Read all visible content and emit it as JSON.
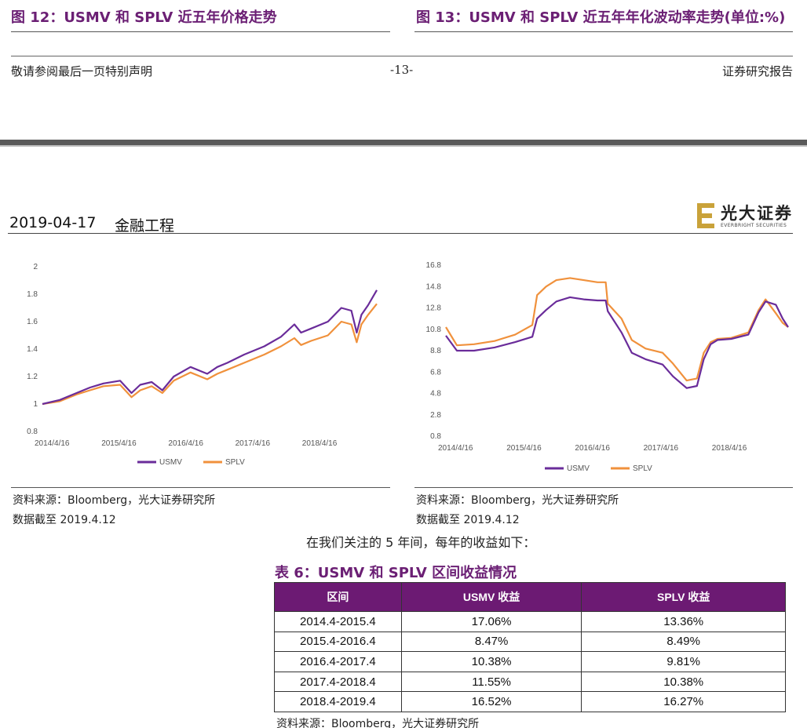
{
  "figures": {
    "fig12_title": "图 12：USMV 和 SPLV 近五年价格走势",
    "fig13_title": "图 13：USMV 和 SPLV 近五年年化波动率走势(单位:%)"
  },
  "footer": {
    "disclaimer": "敬请参阅最后一页特别声明",
    "page_number": "-13-",
    "report_type": "证券研究报告"
  },
  "header": {
    "date": "2019-04-17",
    "section": "金融工程",
    "logo_cn": "光大证券",
    "logo_en": "EVERBRIGHT SECURITIES"
  },
  "chart_data": [
    {
      "type": "line",
      "title": "",
      "x_ticks": [
        "2014/4/16",
        "2015/4/16",
        "2016/4/16",
        "2017/4/16",
        "2018/4/16"
      ],
      "y_ticks": [
        "0.8",
        "1",
        "1.2",
        "1.4",
        "1.6",
        "1.8",
        "2"
      ],
      "ylim": [
        0.8,
        2.0
      ],
      "x_range": [
        2014.29,
        2019.28
      ],
      "grid": false,
      "legend": "bottom",
      "series": [
        {
          "name": "USMV",
          "color": "#6a2c9a",
          "x": [
            2014.29,
            2014.55,
            2014.8,
            2015.0,
            2015.2,
            2015.45,
            2015.62,
            2015.75,
            2015.92,
            2016.08,
            2016.25,
            2016.5,
            2016.75,
            2016.9,
            2017.05,
            2017.3,
            2017.6,
            2017.85,
            2018.05,
            2018.15,
            2018.3,
            2018.55,
            2018.75,
            2018.9,
            2018.98,
            2019.05,
            2019.15,
            2019.28
          ],
          "values": [
            1.0,
            1.03,
            1.08,
            1.12,
            1.15,
            1.17,
            1.08,
            1.14,
            1.16,
            1.1,
            1.2,
            1.27,
            1.22,
            1.27,
            1.3,
            1.36,
            1.42,
            1.49,
            1.58,
            1.52,
            1.55,
            1.6,
            1.7,
            1.68,
            1.52,
            1.65,
            1.72,
            1.83
          ]
        },
        {
          "name": "SPLV",
          "color": "#f0913c",
          "x": [
            2014.29,
            2014.55,
            2014.8,
            2015.0,
            2015.2,
            2015.45,
            2015.62,
            2015.75,
            2015.92,
            2016.08,
            2016.25,
            2016.5,
            2016.75,
            2016.9,
            2017.05,
            2017.3,
            2017.6,
            2017.85,
            2018.05,
            2018.15,
            2018.3,
            2018.55,
            2018.75,
            2018.9,
            2018.98,
            2019.05,
            2019.15,
            2019.28
          ],
          "values": [
            1.0,
            1.02,
            1.07,
            1.1,
            1.13,
            1.14,
            1.05,
            1.1,
            1.13,
            1.08,
            1.17,
            1.23,
            1.18,
            1.22,
            1.25,
            1.3,
            1.36,
            1.42,
            1.48,
            1.43,
            1.46,
            1.5,
            1.6,
            1.58,
            1.45,
            1.58,
            1.65,
            1.73
          ]
        }
      ]
    },
    {
      "type": "line",
      "title": "",
      "x_ticks": [
        "2014/4/16",
        "2015/4/16",
        "2016/4/16",
        "2017/4/16",
        "2018/4/16"
      ],
      "y_ticks": [
        "0.8",
        "2.8",
        "4.8",
        "6.8",
        "8.8",
        "10.8",
        "12.8",
        "14.8",
        "16.8"
      ],
      "ylim": [
        0.8,
        16.8
      ],
      "x_range": [
        2014.29,
        2019.28
      ],
      "grid": false,
      "legend": "bottom",
      "series": [
        {
          "name": "USMV",
          "color": "#6a2c9a",
          "x": [
            2014.29,
            2014.45,
            2014.7,
            2015.0,
            2015.3,
            2015.55,
            2015.62,
            2015.75,
            2015.9,
            2016.1,
            2016.3,
            2016.5,
            2016.62,
            2016.65,
            2016.85,
            2017.0,
            2017.2,
            2017.45,
            2017.6,
            2017.8,
            2017.95,
            2018.05,
            2018.15,
            2018.25,
            2018.45,
            2018.7,
            2018.85,
            2018.95,
            2019.1,
            2019.2,
            2019.28
          ],
          "values": [
            10.2,
            8.8,
            8.8,
            9.1,
            9.6,
            10.1,
            11.8,
            12.6,
            13.4,
            13.8,
            13.6,
            13.5,
            13.5,
            12.5,
            10.5,
            8.6,
            8.0,
            7.5,
            6.4,
            5.3,
            5.5,
            8.0,
            9.4,
            9.8,
            9.9,
            10.3,
            12.4,
            13.4,
            13.1,
            11.8,
            11.0
          ]
        },
        {
          "name": "SPLV",
          "color": "#f0913c",
          "x": [
            2014.29,
            2014.45,
            2014.7,
            2015.0,
            2015.3,
            2015.55,
            2015.62,
            2015.75,
            2015.9,
            2016.1,
            2016.3,
            2016.5,
            2016.62,
            2016.65,
            2016.85,
            2017.0,
            2017.2,
            2017.45,
            2017.6,
            2017.8,
            2017.95,
            2018.05,
            2018.15,
            2018.25,
            2018.45,
            2018.7,
            2018.85,
            2018.95,
            2019.1,
            2019.2,
            2019.28
          ],
          "values": [
            11.0,
            9.3,
            9.4,
            9.7,
            10.3,
            11.2,
            14.0,
            14.8,
            15.4,
            15.6,
            15.4,
            15.2,
            15.2,
            13.2,
            11.8,
            9.8,
            9.0,
            8.6,
            7.6,
            6.0,
            6.2,
            8.6,
            9.6,
            9.9,
            10.0,
            10.5,
            12.6,
            13.6,
            12.3,
            11.4,
            11.0
          ]
        }
      ]
    }
  ],
  "notes": {
    "left_source": "资料来源：Bloomberg，光大证券研究所",
    "left_cutoff": "数据截至 2019.4.12",
    "right_source": "资料来源：Bloomberg，光大证券研究所",
    "right_cutoff": "数据截至 2019.4.12"
  },
  "intro_text": "在我们关注的 5 年间，每年的收益如下：",
  "table": {
    "title": "表 6：USMV 和 SPLV 区间收益情况",
    "headers": [
      "区间",
      "USMV 收益",
      "SPLV 收益"
    ],
    "rows": [
      [
        "2014.4-2015.4",
        "17.06%",
        "13.36%"
      ],
      [
        "2015.4-2016.4",
        "8.47%",
        "8.49%"
      ],
      [
        "2016.4-2017.4",
        "10.38%",
        "9.81%"
      ],
      [
        "2017.4-2018.4",
        "11.55%",
        "10.38%"
      ],
      [
        "2018.4-2019.4",
        "16.52%",
        "16.27%"
      ]
    ],
    "source": "资料来源：Bloomberg，光大证券研究所"
  }
}
